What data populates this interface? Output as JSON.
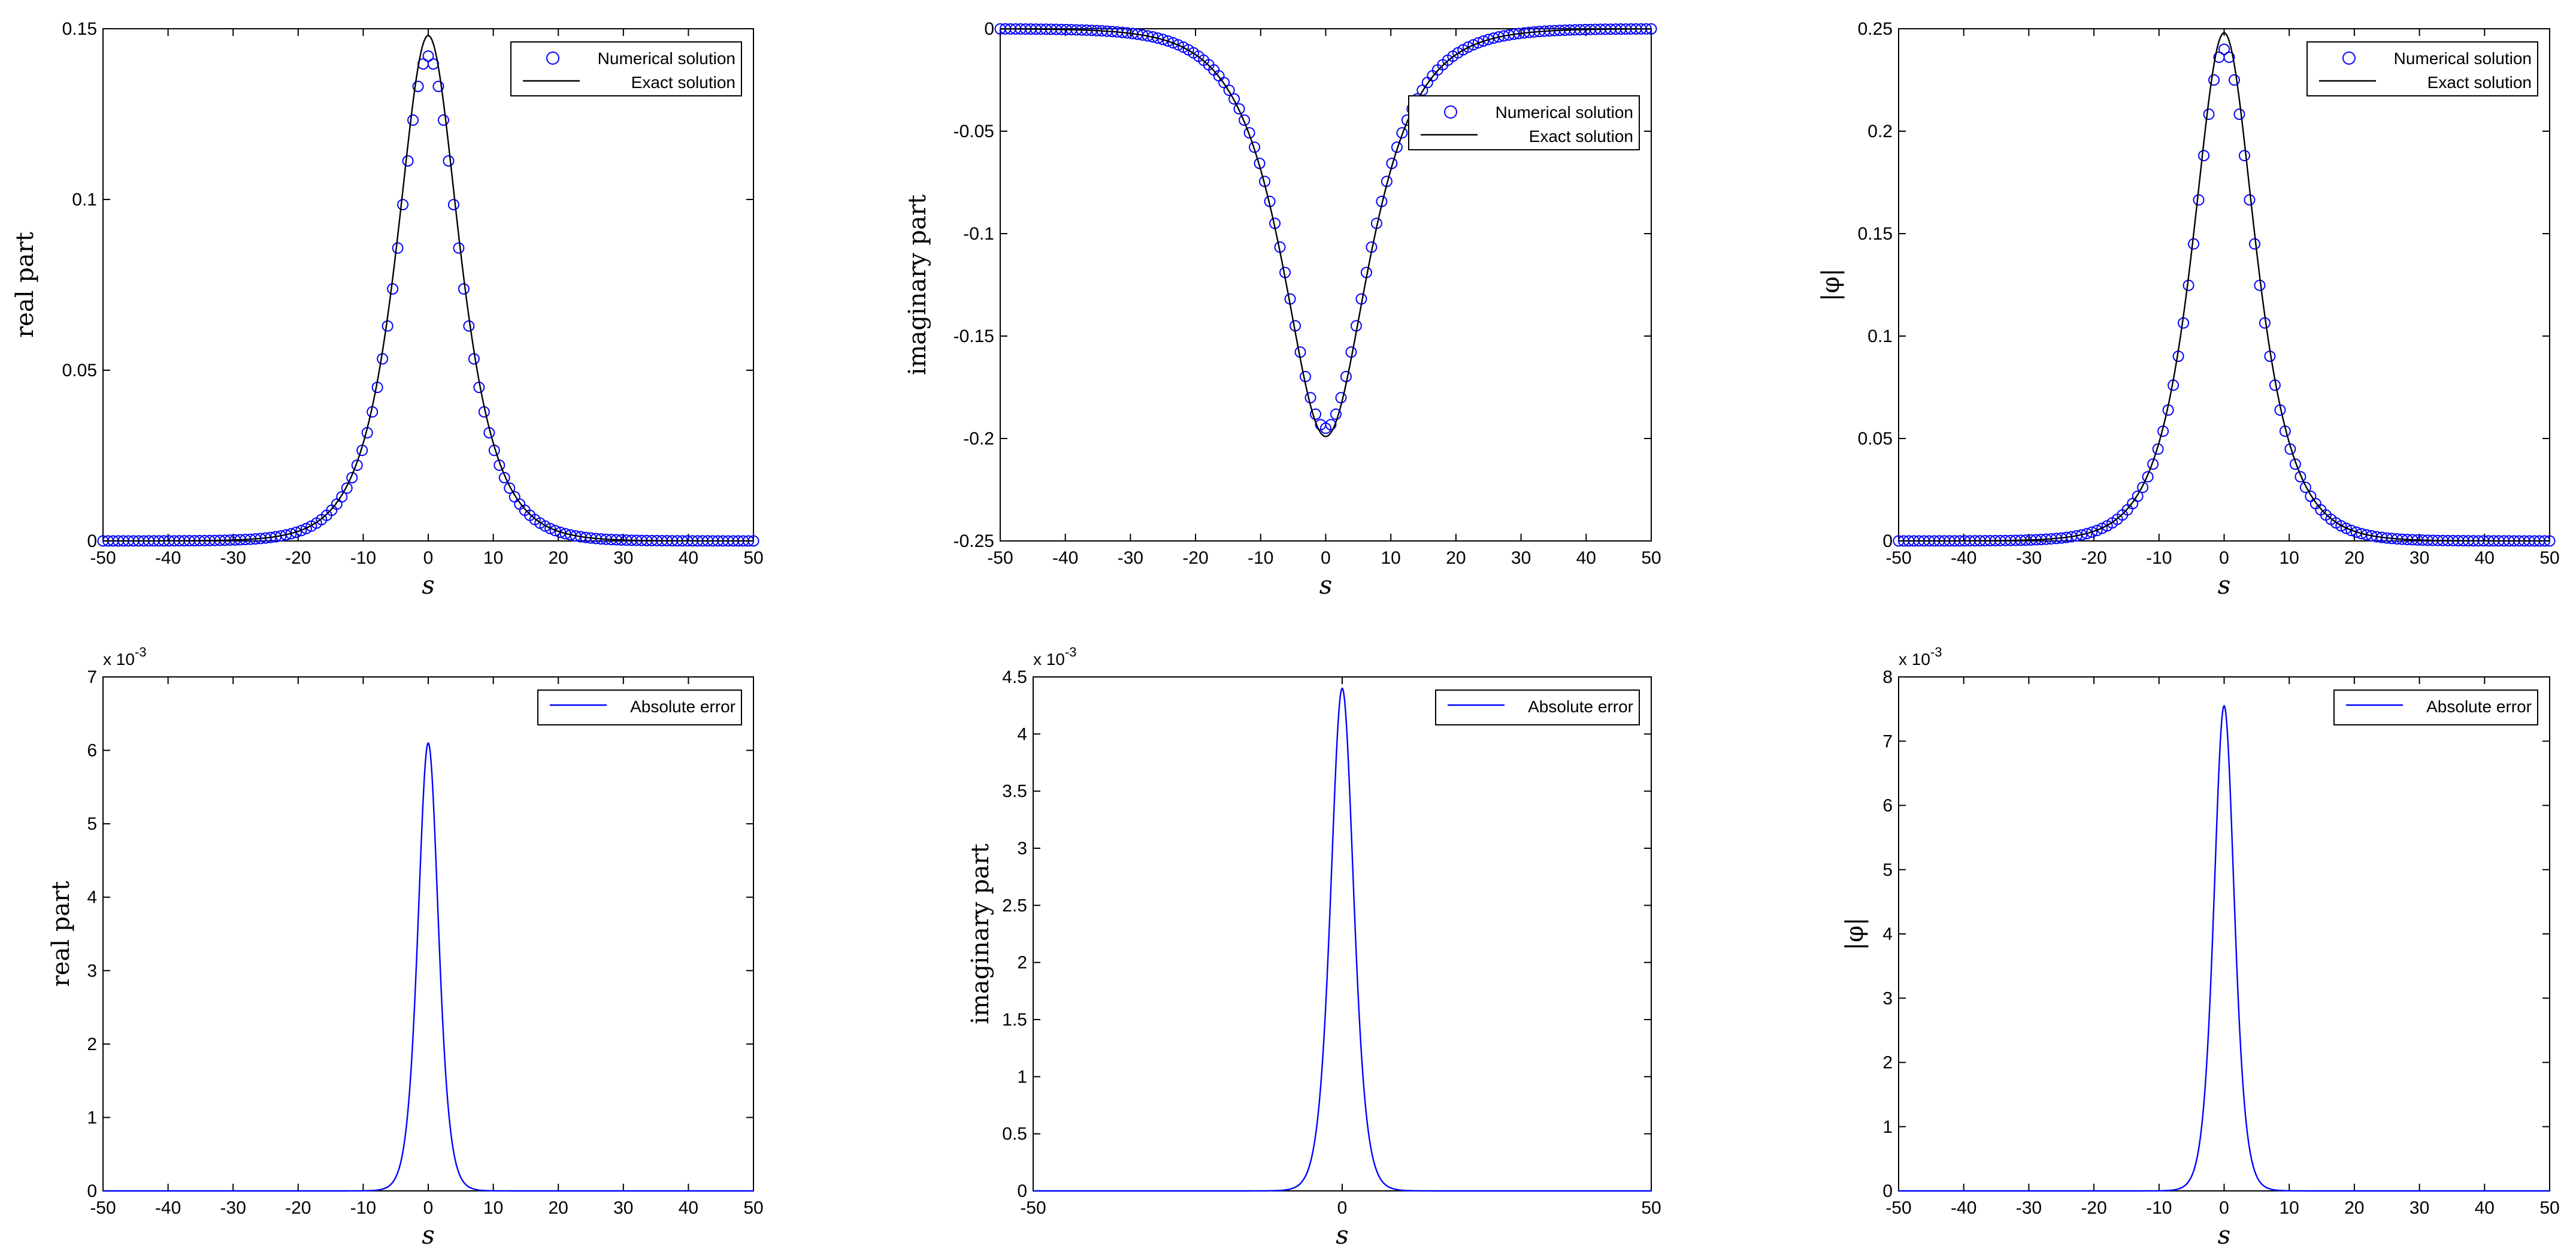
{
  "chart_data": [
    {
      "type": "scatter",
      "ylabel": "real part",
      "xlabel": "s",
      "xlim": [
        -50,
        50
      ],
      "ylim": [
        0,
        0.15
      ],
      "xticks": [
        "-50",
        "-40",
        "-30",
        "-20",
        "-10",
        "0",
        "10",
        "20",
        "30",
        "40",
        "50"
      ],
      "yticks": [
        "0",
        "0.05",
        "0.1",
        "0.15"
      ],
      "legend": {
        "position": "top-right",
        "entries": [
          "Numerical solution",
          "Exact solution"
        ]
      },
      "series": [
        {
          "name": "Numerical solution",
          "style": "blue circle markers",
          "color": "#0000ff",
          "x_range": [
            -50,
            50
          ],
          "peak_x": 0,
          "peak_y": 0.142,
          "halfwidth": 4.3
        },
        {
          "name": "Exact solution",
          "style": "black line",
          "color": "#000000",
          "x_range": [
            -50,
            50
          ],
          "peak_x": 0,
          "peak_y": 0.148,
          "halfwidth": 4.3
        }
      ]
    },
    {
      "type": "scatter",
      "ylabel": "imaginary part",
      "xlabel": "s",
      "xlim": [
        -50,
        50
      ],
      "ylim": [
        -0.25,
        0
      ],
      "xticks": [
        "-50",
        "-40",
        "-30",
        "-20",
        "-10",
        "0",
        "10",
        "20",
        "30",
        "40",
        "50"
      ],
      "yticks": [
        "-0.25",
        "-0.2",
        "-0.15",
        "-0.1",
        "-0.05",
        "0"
      ],
      "legend": {
        "position": "top-right",
        "entries": [
          "Numerical solution",
          "Exact solution"
        ]
      },
      "series": [
        {
          "name": "Numerical solution",
          "style": "blue circle markers",
          "color": "#0000ff",
          "x_range": [
            -50,
            50
          ],
          "peak_x": 0,
          "peak_y": -0.195,
          "halfwidth": 5.8
        },
        {
          "name": "Exact solution",
          "style": "black line",
          "color": "#000000",
          "x_range": [
            -50,
            50
          ],
          "peak_x": 0,
          "peak_y": -0.199,
          "halfwidth": 5.8
        }
      ]
    },
    {
      "type": "scatter",
      "ylabel": "|φ|",
      "xlabel": "s",
      "xlim": [
        -50,
        50
      ],
      "ylim": [
        0,
        0.25
      ],
      "xticks": [
        "-50",
        "-40",
        "-30",
        "-20",
        "-10",
        "0",
        "10",
        "20",
        "30",
        "40",
        "50"
      ],
      "yticks": [
        "0",
        "0.05",
        "0.1",
        "0.15",
        "0.2",
        "0.25"
      ],
      "legend": {
        "position": "top-right",
        "entries": [
          "Numerical solution",
          "Exact solution"
        ]
      },
      "series": [
        {
          "name": "Numerical solution",
          "style": "blue circle markers",
          "color": "#0000ff",
          "x_range": [
            -50,
            50
          ],
          "peak_x": 0,
          "peak_y": 0.24,
          "halfwidth": 4.3
        },
        {
          "name": "Exact solution",
          "style": "black line",
          "color": "#000000",
          "x_range": [
            -50,
            50
          ],
          "peak_x": 0,
          "peak_y": 0.248,
          "halfwidth": 4.3
        }
      ]
    },
    {
      "type": "line",
      "ylabel": "real part",
      "xlabel": "s",
      "xlim": [
        -50,
        50
      ],
      "ylim": [
        0,
        7
      ],
      "yscale_label": "x 10",
      "yscale_exp": "-3",
      "xticks": [
        "-50",
        "-40",
        "-30",
        "-20",
        "-10",
        "0",
        "10",
        "20",
        "30",
        "40",
        "50"
      ],
      "yticks": [
        "0",
        "1",
        "2",
        "3",
        "4",
        "5",
        "6",
        "7"
      ],
      "legend": {
        "position": "top-right",
        "entries": [
          "Absolute error"
        ]
      },
      "series": [
        {
          "name": "Absolute error",
          "color": "#0000ff",
          "x_range": [
            -50,
            50
          ],
          "peak_x": 0,
          "peak_y": 6.1,
          "halfwidth": 2.2
        }
      ]
    },
    {
      "type": "line",
      "ylabel": "imaginary part",
      "xlabel": "s",
      "xlim": [
        -50,
        50
      ],
      "ylim": [
        0,
        4.5
      ],
      "yscale_label": "x 10",
      "yscale_exp": "-3",
      "xticks": [
        "-50",
        "0",
        "50"
      ],
      "yticks": [
        "0",
        "0.5",
        "1",
        "1.5",
        "2",
        "2.5",
        "3",
        "3.5",
        "4",
        "4.5"
      ],
      "legend": {
        "position": "top-right",
        "entries": [
          "Absolute error"
        ]
      },
      "series": [
        {
          "name": "Absolute error",
          "color": "#0000ff",
          "x_range": [
            -50,
            50
          ],
          "peak_x": 0,
          "peak_y": 4.4,
          "halfwidth": 2.6
        }
      ]
    },
    {
      "type": "line",
      "ylabel": "|φ|",
      "xlabel": "s",
      "xlim": [
        -50,
        50
      ],
      "ylim": [
        0,
        8
      ],
      "yscale_label": "x 10",
      "yscale_exp": "-3",
      "xticks": [
        "-50",
        "-40",
        "-30",
        "-20",
        "-10",
        "0",
        "10",
        "20",
        "30",
        "40",
        "50"
      ],
      "yticks": [
        "0",
        "1",
        "2",
        "3",
        "4",
        "5",
        "6",
        "7",
        "8"
      ],
      "legend": {
        "position": "top-right",
        "entries": [
          "Absolute  error"
        ]
      },
      "series": [
        {
          "name": "Absolute  error",
          "color": "#0000ff",
          "x_range": [
            -50,
            50
          ],
          "peak_x": 0,
          "peak_y": 7.55,
          "halfwidth": 2.2
        }
      ]
    }
  ]
}
